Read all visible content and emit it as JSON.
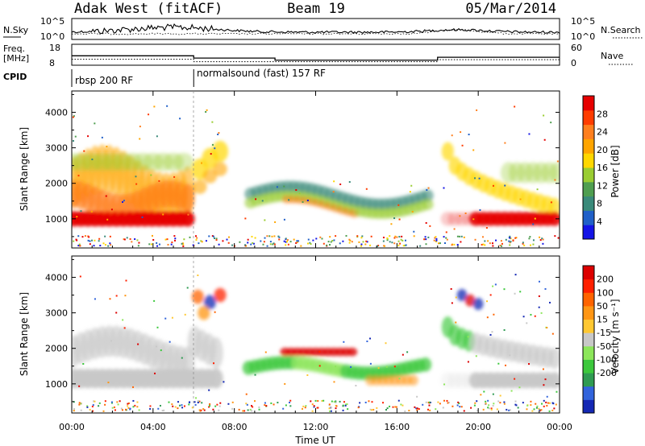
{
  "header": {
    "radar": "Adak West (fitACF)",
    "beam": "Beam 19",
    "date": "05/Mar/2014"
  },
  "chart_data": [
    {
      "type": "line",
      "panel": "noise",
      "left_label": "N.Sky",
      "right_label": "N.Search",
      "left_ticks": [
        "10^5",
        "10^0"
      ],
      "right_ticks": [
        "10^5",
        "10^0"
      ]
    },
    {
      "type": "line",
      "panel": "frequency",
      "left_label_1": "Freq.",
      "left_label_2": "[MHz]",
      "right_label": "Nave",
      "left_ticks": [
        18,
        8
      ],
      "right_ticks": [
        60,
        0
      ],
      "freq_steps": [
        {
          "x": 0,
          "y": 12.5
        },
        {
          "x": 6,
          "y": 12.5
        },
        {
          "x": 6,
          "y": 11.4
        },
        {
          "x": 10,
          "y": 11.4
        },
        {
          "x": 10,
          "y": 10.4
        },
        {
          "x": 18,
          "y": 10.4
        },
        {
          "x": 18,
          "y": 11.8
        },
        {
          "x": 24,
          "y": 11.8
        }
      ],
      "nave_steps": [
        {
          "x": 0,
          "y": 17
        },
        {
          "x": 6,
          "y": 17
        },
        {
          "x": 6,
          "y": 10
        },
        {
          "x": 18,
          "y": 10
        },
        {
          "x": 18,
          "y": 16
        },
        {
          "x": 24,
          "y": 16
        }
      ]
    },
    {
      "type": "table",
      "panel": "cpid",
      "label": "CPID",
      "segments": [
        {
          "start": 0,
          "text": "rbsp 200 RF"
        },
        {
          "start": 6,
          "text": "normalsound (fast) 157 RF"
        }
      ]
    },
    {
      "type": "heatmap",
      "panel": "power",
      "ylabel": "Slant Range [km]",
      "yticks": [
        1000,
        2000,
        3000,
        4000
      ],
      "ylim": [
        180,
        4600
      ],
      "colorbar_label": "Power [dB]",
      "colorbar_ticks": [
        "4",
        "8",
        "12",
        "16",
        "20",
        "24",
        "28"
      ],
      "colorbar_range": [
        0,
        32
      ],
      "colors": [
        "#1414e6",
        "#2060c8",
        "#3a8a7a",
        "#4f9e50",
        "#9acd32",
        "#ffd700",
        "#ffa500",
        "#ff7f1e",
        "#ff3c00",
        "#e60000"
      ]
    },
    {
      "type": "heatmap",
      "panel": "velocity",
      "ylabel": "Slant Range [km]",
      "yticks": [
        1000,
        2000,
        3000,
        4000
      ],
      "ylim": [
        180,
        4600
      ],
      "colorbar_label": "Velocity [m s⁻¹]",
      "colorbar_ticks": [
        "200",
        "100",
        "50",
        "15",
        "-15",
        "-50",
        "-100",
        "-200"
      ],
      "colors": [
        "#1428b4",
        "#3264dc",
        "#2f9b52",
        "#3cc83c",
        "#8ce65a",
        "#c8c8c8",
        "#ffc832",
        "#ff9614",
        "#ff6400",
        "#ff2000",
        "#dc0000"
      ],
      "xlabel": "Time UT",
      "xticks": [
        "00:00",
        "04:00",
        "08:00",
        "12:00",
        "16:00",
        "20:00",
        "00:00"
      ],
      "xticks_hours": [
        0,
        4,
        8,
        12,
        16,
        20,
        24
      ],
      "xlim": [
        0,
        24
      ]
    }
  ]
}
